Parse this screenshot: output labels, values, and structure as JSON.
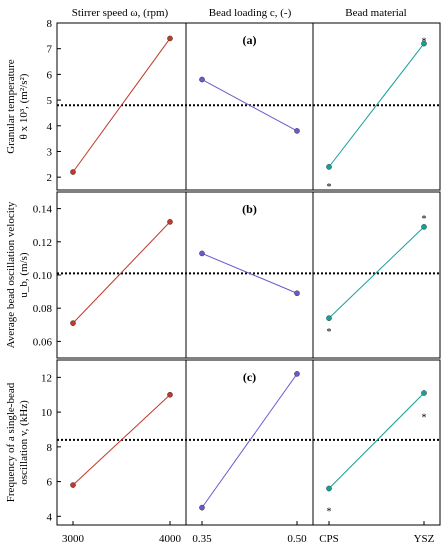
{
  "column_titles": [
    "Stirrer speed ω, (rpm)",
    "Bead loading c, (-)",
    "Bead material"
  ],
  "chart_data": {
    "type": "line",
    "x_groups": [
      {
        "name": "Stirrer speed ω, (rpm)",
        "categories": [
          "3000",
          "4000"
        ]
      },
      {
        "name": "Bead loading c, (-)",
        "categories": [
          "0.35",
          "0.50"
        ]
      },
      {
        "name": "Bead material",
        "categories": [
          "CPS",
          "YSZ"
        ]
      }
    ],
    "panels": [
      {
        "label": "(a)",
        "ylabel_lines": [
          "Granular temperature",
          "θ x 10³, (m²/s²)"
        ],
        "ylim": [
          1.5,
          8.0
        ],
        "yticks": [
          "2",
          "3",
          "4",
          "5",
          "6",
          "7",
          "8"
        ],
        "ytick_values": [
          2,
          3,
          4,
          5,
          6,
          7,
          8
        ],
        "mean_line": 4.8,
        "series": [
          {
            "values": [
              2.2,
              7.4
            ],
            "color": "#c0392b"
          },
          {
            "values": [
              5.8,
              3.8
            ],
            "color": "#6a5acd"
          },
          {
            "values": [
              2.4,
              7.2
            ],
            "color": "#17a098"
          }
        ],
        "stars": [
          {
            "group": 2,
            "index": 0,
            "y": 1.7,
            "text": "*",
            "color": "#555555"
          },
          {
            "group": 2,
            "index": 1,
            "y": 7.35,
            "text": "*",
            "color": "#555555"
          }
        ]
      },
      {
        "label": "(b)",
        "ylabel_lines": [
          "Average bead oscillation velocity",
          "u_b, (m/s)"
        ],
        "ylim": [
          0.05,
          0.15
        ],
        "yticks": [
          "0.06",
          "0.08",
          "0.10",
          "0.12",
          "0.14"
        ],
        "ytick_values": [
          0.06,
          0.08,
          0.1,
          0.12,
          0.14
        ],
        "mean_line": 0.101,
        "series": [
          {
            "values": [
              0.071,
              0.132
            ],
            "color": "#c0392b"
          },
          {
            "values": [
              0.113,
              0.089
            ],
            "color": "#6a5acd"
          },
          {
            "values": [
              0.074,
              0.129
            ],
            "color": "#17a098"
          }
        ],
        "stars": [
          {
            "group": 2,
            "index": 0,
            "y": 0.067,
            "text": "*",
            "color": "#555555"
          },
          {
            "group": 2,
            "index": 1,
            "y": 0.135,
            "text": "*",
            "color": "#555555"
          }
        ]
      },
      {
        "label": "(c)",
        "ylabel_lines": [
          "Frequency of a single-bead",
          "oscillation v, (kHz)"
        ],
        "ylim": [
          3.5,
          13.0
        ],
        "yticks": [
          "4",
          "6",
          "8",
          "10",
          "12"
        ],
        "ytick_values": [
          4,
          6,
          8,
          10,
          12
        ],
        "mean_line": 8.4,
        "series": [
          {
            "values": [
              5.8,
              11.0
            ],
            "color": "#c0392b"
          },
          {
            "values": [
              4.5,
              12.2
            ],
            "color": "#6a5acd"
          },
          {
            "values": [
              5.6,
              11.1
            ],
            "color": "#17a098"
          }
        ],
        "stars": [
          {
            "group": 2,
            "index": 0,
            "y": 4.4,
            "text": "*",
            "color": "#111111"
          },
          {
            "group": 2,
            "index": 1,
            "y": 9.8,
            "text": "*",
            "color": "#111111"
          }
        ]
      }
    ],
    "grid": false,
    "legend": "none"
  }
}
